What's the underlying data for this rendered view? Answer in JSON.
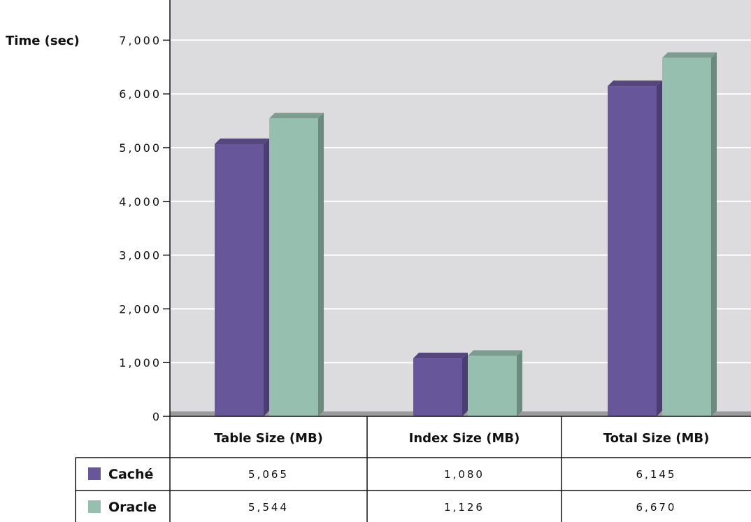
{
  "chart_data": {
    "type": "bar",
    "ylabel": "Time (sec)",
    "ylim": [
      0,
      7500
    ],
    "yticks": [
      "0",
      "1,000",
      "2,000",
      "3,000",
      "4,000",
      "5,000",
      "6,000",
      "7,000"
    ],
    "categories": [
      "Table Size (MB)",
      "Index Size (MB)",
      "Total Size (MB)"
    ],
    "grid": true,
    "series": [
      {
        "name": "Caché",
        "values": [
          5065,
          1080,
          6145
        ],
        "labels": [
          "5,065",
          "1,080",
          "6,145"
        ],
        "color": "#68569a"
      },
      {
        "name": "Oracle",
        "values": [
          5544,
          1126,
          6670
        ],
        "labels": [
          "5,544",
          "1,126",
          "6,670"
        ],
        "color": "#97bfaf"
      }
    ]
  }
}
